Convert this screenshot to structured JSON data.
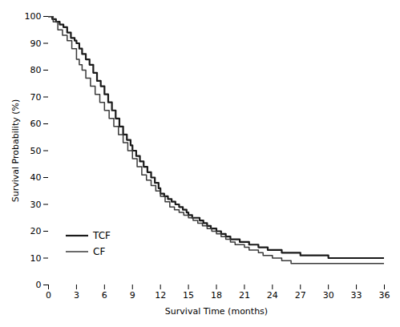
{
  "chart_data": {
    "type": "step",
    "xlabel": "Survival Time (months)",
    "ylabel": "Survival Probability (%)",
    "xlim": [
      0,
      36
    ],
    "ylim": [
      0,
      100
    ],
    "xticks": [
      0,
      3,
      6,
      9,
      12,
      15,
      18,
      21,
      24,
      27,
      30,
      33,
      36
    ],
    "yticks": [
      0,
      10,
      20,
      30,
      40,
      50,
      60,
      70,
      80,
      90,
      100
    ],
    "legend": "lower left",
    "series": [
      {
        "name": "TCF",
        "color": "#1a1a1a",
        "x": [
          0,
          0.4,
          0.8,
          1.2,
          1.6,
          2.0,
          2.4,
          2.8,
          3.0,
          3.3,
          3.6,
          4.0,
          4.4,
          4.8,
          5.2,
          5.6,
          6.0,
          6.4,
          6.8,
          7.2,
          7.6,
          8.0,
          8.4,
          8.8,
          9.0,
          9.4,
          9.8,
          10.2,
          10.6,
          11.0,
          11.4,
          11.8,
          12.0,
          12.4,
          12.8,
          13.2,
          13.6,
          14.0,
          14.4,
          14.8,
          15.0,
          15.4,
          15.8,
          16.2,
          16.6,
          17.0,
          17.4,
          17.8,
          18.0,
          18.5,
          19.0,
          19.5,
          20.0,
          20.5,
          21.0,
          21.5,
          22.0,
          22.5,
          23.0,
          23.5,
          24.0,
          25.0,
          26.0,
          27.0,
          28.0,
          29.0,
          30.0,
          31.0,
          32.0,
          33.0,
          34.0,
          36.0
        ],
        "values": [
          100,
          99,
          98,
          97,
          96,
          94,
          92,
          91,
          90,
          88,
          86,
          84,
          82,
          79,
          76,
          74,
          71,
          68,
          65,
          62,
          59,
          56,
          54,
          52,
          50,
          48,
          46,
          44,
          42,
          40,
          38,
          36,
          34,
          33,
          32,
          31,
          30,
          29,
          28,
          27,
          26,
          25,
          25,
          24,
          23,
          22,
          21,
          21,
          20,
          19,
          18,
          17,
          17,
          16,
          16,
          15,
          15,
          14,
          14,
          13,
          13,
          12,
          12,
          11,
          11,
          11,
          10,
          10,
          10,
          10,
          10,
          10
        ]
      },
      {
        "name": "CF",
        "color": "#3a3a3a",
        "x": [
          0,
          0.5,
          1.0,
          1.5,
          2.0,
          2.5,
          3.0,
          3.3,
          3.6,
          4.0,
          4.5,
          5.0,
          5.5,
          6.0,
          6.5,
          7.0,
          7.5,
          8.0,
          8.5,
          9.0,
          9.5,
          10.0,
          10.5,
          11.0,
          11.5,
          12.0,
          12.5,
          13.0,
          13.5,
          14.0,
          14.5,
          15.0,
          15.5,
          16.0,
          16.5,
          17.0,
          17.5,
          18.0,
          18.5,
          19.0,
          19.5,
          20.0,
          20.5,
          21.0,
          21.5,
          22.0,
          22.5,
          23.0,
          23.5,
          24.0,
          24.5,
          25.0,
          25.5,
          26.0,
          27.0,
          28.0,
          29.0,
          30.0,
          31.0,
          32.0,
          33.0,
          34.0,
          36.0
        ],
        "values": [
          100,
          98,
          95,
          93,
          91,
          88,
          84,
          82,
          80,
          77,
          74,
          71,
          68,
          65,
          62,
          59,
          56,
          53,
          50,
          47,
          44,
          41,
          39,
          37,
          35,
          33,
          31,
          29,
          28,
          27,
          26,
          25,
          24,
          23,
          22,
          21,
          20,
          19,
          18,
          17,
          16,
          15,
          15,
          14,
          13,
          13,
          12,
          11,
          11,
          10,
          10,
          9,
          9,
          8,
          8,
          8,
          8,
          8,
          8,
          8,
          8,
          8,
          8
        ]
      }
    ]
  }
}
